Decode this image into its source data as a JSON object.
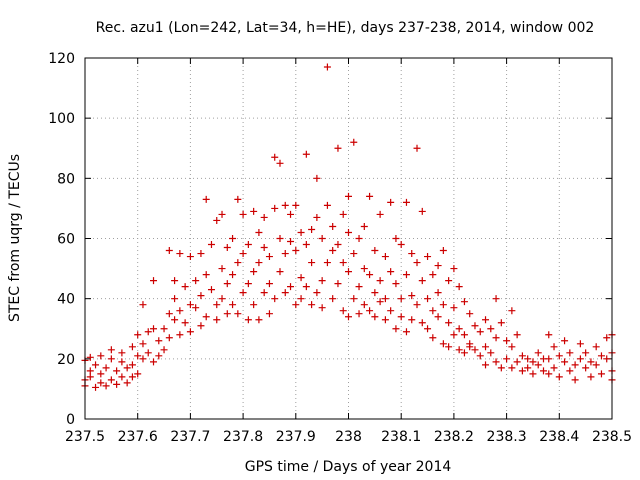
{
  "chart_data": {
    "type": "scatter",
    "title": "Rec. azu1 (Lon=242, Lat=34, h=HE), days 237-238, 2014, window 002",
    "xlabel": "GPS time / Days of year 2014",
    "ylabel": "STEC from uqrg / TECUs",
    "xlim": [
      237.5,
      238.5
    ],
    "ylim": [
      0,
      120
    ],
    "xticks": [
      237.5,
      237.6,
      237.7,
      237.8,
      237.9,
      238.0,
      238.1,
      238.2,
      238.3,
      238.4,
      238.5
    ],
    "xtick_labels": [
      "237.5",
      "237.6",
      "237.7",
      "237.8",
      "237.9",
      "238",
      "238.1",
      "238.2",
      "238.3",
      "238.4",
      "238.5"
    ],
    "yticks": [
      0,
      20,
      40,
      60,
      80,
      100,
      120
    ],
    "ytick_labels": [
      "0",
      "20",
      "40",
      "60",
      "80",
      "100",
      "120"
    ],
    "grid": true,
    "marker": "+",
    "color": "#cc0000",
    "series": [
      {
        "name": "STEC",
        "points": [
          [
            237.5,
            19.5
          ],
          [
            237.5,
            13
          ],
          [
            237.5,
            11
          ],
          [
            237.51,
            20.5
          ],
          [
            237.51,
            16
          ],
          [
            237.51,
            14
          ],
          [
            237.52,
            10.5
          ],
          [
            237.52,
            18
          ],
          [
            237.53,
            21
          ],
          [
            237.53,
            12
          ],
          [
            237.53,
            15
          ],
          [
            237.54,
            11
          ],
          [
            237.54,
            17
          ],
          [
            237.55,
            23
          ],
          [
            237.55,
            13
          ],
          [
            237.55,
            20
          ],
          [
            237.56,
            11.5
          ],
          [
            237.56,
            16
          ],
          [
            237.57,
            22
          ],
          [
            237.57,
            14
          ],
          [
            237.57,
            19
          ],
          [
            237.58,
            12
          ],
          [
            237.58,
            17
          ],
          [
            237.59,
            24
          ],
          [
            237.59,
            18
          ],
          [
            237.59,
            14
          ],
          [
            237.6,
            21
          ],
          [
            237.6,
            15
          ],
          [
            237.6,
            28
          ],
          [
            237.61,
            20
          ],
          [
            237.61,
            38
          ],
          [
            237.61,
            25
          ],
          [
            237.62,
            22
          ],
          [
            237.62,
            29
          ],
          [
            237.63,
            30
          ],
          [
            237.63,
            19
          ],
          [
            237.63,
            46
          ],
          [
            237.64,
            26
          ],
          [
            237.64,
            21
          ],
          [
            237.65,
            23
          ],
          [
            237.65,
            30
          ],
          [
            237.66,
            35
          ],
          [
            237.66,
            56
          ],
          [
            237.66,
            27
          ],
          [
            237.67,
            33
          ],
          [
            237.67,
            46
          ],
          [
            237.67,
            40
          ],
          [
            237.68,
            55
          ],
          [
            237.68,
            28
          ],
          [
            237.68,
            36
          ],
          [
            237.69,
            32
          ],
          [
            237.69,
            44
          ],
          [
            237.7,
            54
          ],
          [
            237.7,
            29
          ],
          [
            237.7,
            38
          ],
          [
            237.71,
            37
          ],
          [
            237.71,
            46
          ],
          [
            237.72,
            55
          ],
          [
            237.72,
            31
          ],
          [
            237.72,
            41
          ],
          [
            237.73,
            73
          ],
          [
            237.73,
            34
          ],
          [
            237.73,
            48
          ],
          [
            237.74,
            43
          ],
          [
            237.74,
            58
          ],
          [
            237.75,
            38
          ],
          [
            237.75,
            66
          ],
          [
            237.75,
            33
          ],
          [
            237.76,
            50
          ],
          [
            237.76,
            68
          ],
          [
            237.76,
            40
          ],
          [
            237.77,
            57
          ],
          [
            237.77,
            35
          ],
          [
            237.77,
            45
          ],
          [
            237.78,
            60
          ],
          [
            237.78,
            38
          ],
          [
            237.78,
            48
          ],
          [
            237.79,
            73
          ],
          [
            237.79,
            35
          ],
          [
            237.79,
            52
          ],
          [
            237.8,
            68
          ],
          [
            237.8,
            42
          ],
          [
            237.8,
            55
          ],
          [
            237.81,
            58
          ],
          [
            237.81,
            33
          ],
          [
            237.81,
            45
          ],
          [
            237.82,
            69
          ],
          [
            237.82,
            49
          ],
          [
            237.82,
            38
          ],
          [
            237.83,
            62
          ],
          [
            237.83,
            33
          ],
          [
            237.83,
            52
          ],
          [
            237.84,
            57
          ],
          [
            237.84,
            42
          ],
          [
            237.84,
            67
          ],
          [
            237.85,
            45
          ],
          [
            237.85,
            35
          ],
          [
            237.85,
            54
          ],
          [
            237.86,
            87
          ],
          [
            237.86,
            70
          ],
          [
            237.86,
            40
          ],
          [
            237.87,
            60
          ],
          [
            237.87,
            85
          ],
          [
            237.87,
            49
          ],
          [
            237.88,
            71
          ],
          [
            237.88,
            42
          ],
          [
            237.88,
            55
          ],
          [
            237.89,
            68
          ],
          [
            237.89,
            44
          ],
          [
            237.89,
            59
          ],
          [
            237.9,
            56
          ],
          [
            237.9,
            38
          ],
          [
            237.9,
            71
          ],
          [
            237.91,
            62
          ],
          [
            237.91,
            47
          ],
          [
            237.91,
            40
          ],
          [
            237.92,
            88
          ],
          [
            237.92,
            58
          ],
          [
            237.92,
            44
          ],
          [
            237.93,
            63
          ],
          [
            237.93,
            38
          ],
          [
            237.93,
            52
          ],
          [
            237.94,
            80
          ],
          [
            237.94,
            67
          ],
          [
            237.94,
            42
          ],
          [
            237.95,
            60
          ],
          [
            237.95,
            46
          ],
          [
            237.95,
            37
          ],
          [
            237.96,
            117
          ],
          [
            237.96,
            71
          ],
          [
            237.96,
            52
          ],
          [
            237.97,
            64
          ],
          [
            237.97,
            40
          ],
          [
            237.97,
            56
          ],
          [
            237.98,
            90
          ],
          [
            237.98,
            58
          ],
          [
            237.98,
            45
          ],
          [
            237.99,
            68
          ],
          [
            237.99,
            52
          ],
          [
            237.99,
            36
          ],
          [
            238.0,
            74
          ],
          [
            238.0,
            49
          ],
          [
            238.0,
            34
          ],
          [
            238.0,
            62
          ],
          [
            238.01,
            92
          ],
          [
            238.01,
            55
          ],
          [
            238.01,
            40
          ],
          [
            238.02,
            60
          ],
          [
            238.02,
            44
          ],
          [
            238.02,
            35
          ],
          [
            238.03,
            50
          ],
          [
            238.03,
            64
          ],
          [
            238.03,
            38
          ],
          [
            238.04,
            74
          ],
          [
            238.04,
            48
          ],
          [
            238.04,
            36
          ],
          [
            238.05,
            56
          ],
          [
            238.05,
            42
          ],
          [
            238.05,
            34
          ],
          [
            238.06,
            68
          ],
          [
            238.06,
            46
          ],
          [
            238.06,
            39
          ],
          [
            238.07,
            54
          ],
          [
            238.07,
            40
          ],
          [
            238.07,
            33
          ],
          [
            238.08,
            72
          ],
          [
            238.08,
            49
          ],
          [
            238.08,
            36
          ],
          [
            238.09,
            60
          ],
          [
            238.09,
            45
          ],
          [
            238.09,
            30
          ],
          [
            238.1,
            58
          ],
          [
            238.1,
            40
          ],
          [
            238.1,
            34
          ],
          [
            238.11,
            72
          ],
          [
            238.11,
            48
          ],
          [
            238.11,
            29
          ],
          [
            238.12,
            55
          ],
          [
            238.12,
            41
          ],
          [
            238.12,
            33
          ],
          [
            238.13,
            90
          ],
          [
            238.13,
            52
          ],
          [
            238.13,
            38
          ],
          [
            238.14,
            69
          ],
          [
            238.14,
            46
          ],
          [
            238.14,
            32
          ],
          [
            238.15,
            54
          ],
          [
            238.15,
            40
          ],
          [
            238.15,
            30
          ],
          [
            238.16,
            48
          ],
          [
            238.16,
            36
          ],
          [
            238.16,
            27
          ],
          [
            238.17,
            51
          ],
          [
            238.17,
            42
          ],
          [
            238.17,
            34
          ],
          [
            238.18,
            56
          ],
          [
            238.18,
            38
          ],
          [
            238.18,
            25
          ],
          [
            238.19,
            46
          ],
          [
            238.19,
            32
          ],
          [
            238.19,
            24
          ],
          [
            238.2,
            50
          ],
          [
            238.2,
            37
          ],
          [
            238.2,
            28
          ],
          [
            238.21,
            44
          ],
          [
            238.21,
            30
          ],
          [
            238.21,
            23
          ],
          [
            238.22,
            39
          ],
          [
            238.22,
            28
          ],
          [
            238.22,
            22
          ],
          [
            238.23,
            35
          ],
          [
            238.23,
            25
          ],
          [
            238.23,
            24
          ],
          [
            238.24,
            31
          ],
          [
            238.24,
            23
          ],
          [
            238.25,
            29
          ],
          [
            238.25,
            21
          ],
          [
            238.26,
            33
          ],
          [
            238.26,
            24
          ],
          [
            238.26,
            18
          ],
          [
            238.27,
            30
          ],
          [
            238.27,
            22
          ],
          [
            238.28,
            40
          ],
          [
            238.28,
            27
          ],
          [
            238.28,
            19
          ],
          [
            238.29,
            32
          ],
          [
            238.29,
            17
          ],
          [
            238.3,
            26
          ],
          [
            238.3,
            20
          ],
          [
            238.31,
            36
          ],
          [
            238.31,
            24
          ],
          [
            238.31,
            17
          ],
          [
            238.32,
            28
          ],
          [
            238.32,
            19
          ],
          [
            238.33,
            16
          ],
          [
            238.33,
            21
          ],
          [
            238.34,
            20
          ],
          [
            238.34,
            17
          ],
          [
            238.35,
            19
          ],
          [
            238.35,
            15
          ],
          [
            238.36,
            22
          ],
          [
            238.36,
            18
          ],
          [
            238.37,
            20
          ],
          [
            238.37,
            16
          ],
          [
            238.38,
            28
          ],
          [
            238.38,
            20
          ],
          [
            238.38,
            15
          ],
          [
            238.39,
            24
          ],
          [
            238.39,
            17
          ],
          [
            238.4,
            21
          ],
          [
            238.4,
            14
          ],
          [
            238.41,
            26
          ],
          [
            238.41,
            19
          ],
          [
            238.42,
            22
          ],
          [
            238.42,
            16
          ],
          [
            238.43,
            18
          ],
          [
            238.43,
            13
          ],
          [
            238.44,
            25
          ],
          [
            238.44,
            20
          ],
          [
            238.45,
            22
          ],
          [
            238.45,
            17
          ],
          [
            238.46,
            19
          ],
          [
            238.46,
            14
          ],
          [
            238.47,
            24
          ],
          [
            238.47,
            18
          ],
          [
            238.48,
            21
          ],
          [
            238.48,
            15
          ],
          [
            238.49,
            27
          ],
          [
            238.49,
            20
          ],
          [
            238.5,
            28
          ],
          [
            238.5,
            22
          ],
          [
            238.5,
            16
          ],
          [
            238.5,
            13
          ]
        ]
      }
    ]
  }
}
